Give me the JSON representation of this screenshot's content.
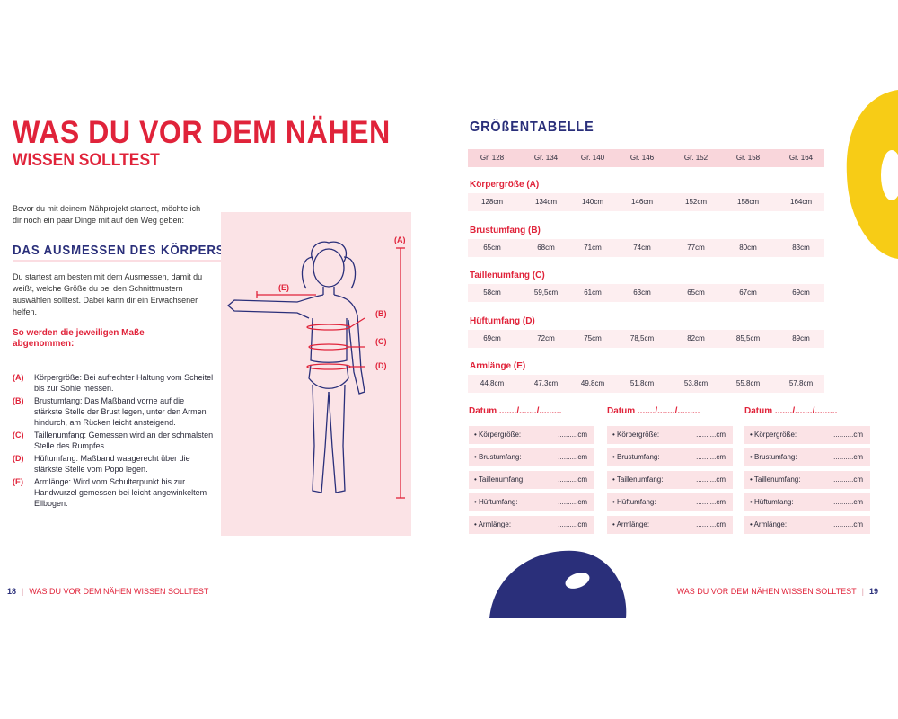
{
  "left_page": {
    "title_line1": "WAS DU VOR DEM NÄHEN",
    "title_line2": "WISSEN SOLLTEST",
    "intro": "Bevor du mit deinem Nähprojekt startest, möchte ich dir noch ein paar Dinge mit auf den Weg geben:",
    "section_heading": "DAS AUSMESSEN DES KÖRPERS",
    "paragraph": "Du startest am besten mit dem Ausmessen, damit du weißt, welche Größe du bei den Schnittmustern auswählen solltest. Dabei kann dir ein Erwachsener helfen.",
    "subheading": "So werden die jeweiligen Maße abgenommen:",
    "measurements": [
      {
        "key": "(A)",
        "text": "Körpergröße: Bei aufrechter Haltung vom Scheitel bis zur Sohle messen."
      },
      {
        "key": "(B)",
        "text": "Brustumfang: Das Maßband vorne auf die stärkste Stelle der Brust legen, unter den Armen hindurch, am Rücken leicht ansteigend."
      },
      {
        "key": "(C)",
        "text": "Taillenumfang: Gemessen wird an der schmalsten Stelle des Rumpfes."
      },
      {
        "key": "(D)",
        "text": "Hüftumfang: Maßband waagerecht über die stärkste Stelle vom Popo legen."
      },
      {
        "key": "(E)",
        "text": "Armlänge: Wird vom Schulterpunkt bis zur Handwurzel gemessen bei leicht angewinkeltem Ellbogen."
      }
    ],
    "figure_labels": {
      "a": "(A)",
      "b": "(B)",
      "c": "(C)",
      "d": "(D)",
      "e": "(E)"
    },
    "page_number": "18",
    "footer": "WAS DU VOR DEM NÄHEN WISSEN SOLLTEST"
  },
  "right_page": {
    "heading": "GRÖßENTABELLE",
    "sizes": [
      "Gr. 128",
      "Gr. 134",
      "Gr. 140",
      "Gr. 146",
      "Gr. 152",
      "Gr. 158",
      "Gr. 164"
    ],
    "rows": [
      {
        "label": "Körpergröße (A)",
        "values": [
          "128cm",
          "134cm",
          "140cm",
          "146cm",
          "152cm",
          "158cm",
          "164cm"
        ]
      },
      {
        "label": "Brustumfang (B)",
        "values": [
          "65cm",
          "68cm",
          "71cm",
          "74cm",
          "77cm",
          "80cm",
          "83cm"
        ]
      },
      {
        "label": "Taillenumfang (C)",
        "values": [
          "58cm",
          "59,5cm",
          "61cm",
          "63cm",
          "65cm",
          "67cm",
          "69cm"
        ]
      },
      {
        "label": "Hüftumfang (D)",
        "values": [
          "69cm",
          "72cm",
          "75cm",
          "78,5cm",
          "82cm",
          "85,5cm",
          "89cm"
        ]
      },
      {
        "label": "Armlänge (E)",
        "values": [
          "44,8cm",
          "47,3cm",
          "49,8cm",
          "51,8cm",
          "53,8cm",
          "55,8cm",
          "57,8cm"
        ]
      }
    ],
    "date_label": "Datum ......./......./.........",
    "form_fields": [
      "• Körpergröße:",
      "• Brustumfang:",
      "• Taillenumfang:",
      "• Hüftumfang:",
      "• Armlänge:"
    ],
    "blank": "..........cm",
    "page_number": "19",
    "footer": "WAS DU VOR DEM NÄHEN WISSEN SOLLTEST"
  },
  "colors": {
    "red": "#e0233a",
    "navy": "#2a2f7a",
    "pink": "#fbe3e6",
    "yellow": "#f7cc16"
  }
}
